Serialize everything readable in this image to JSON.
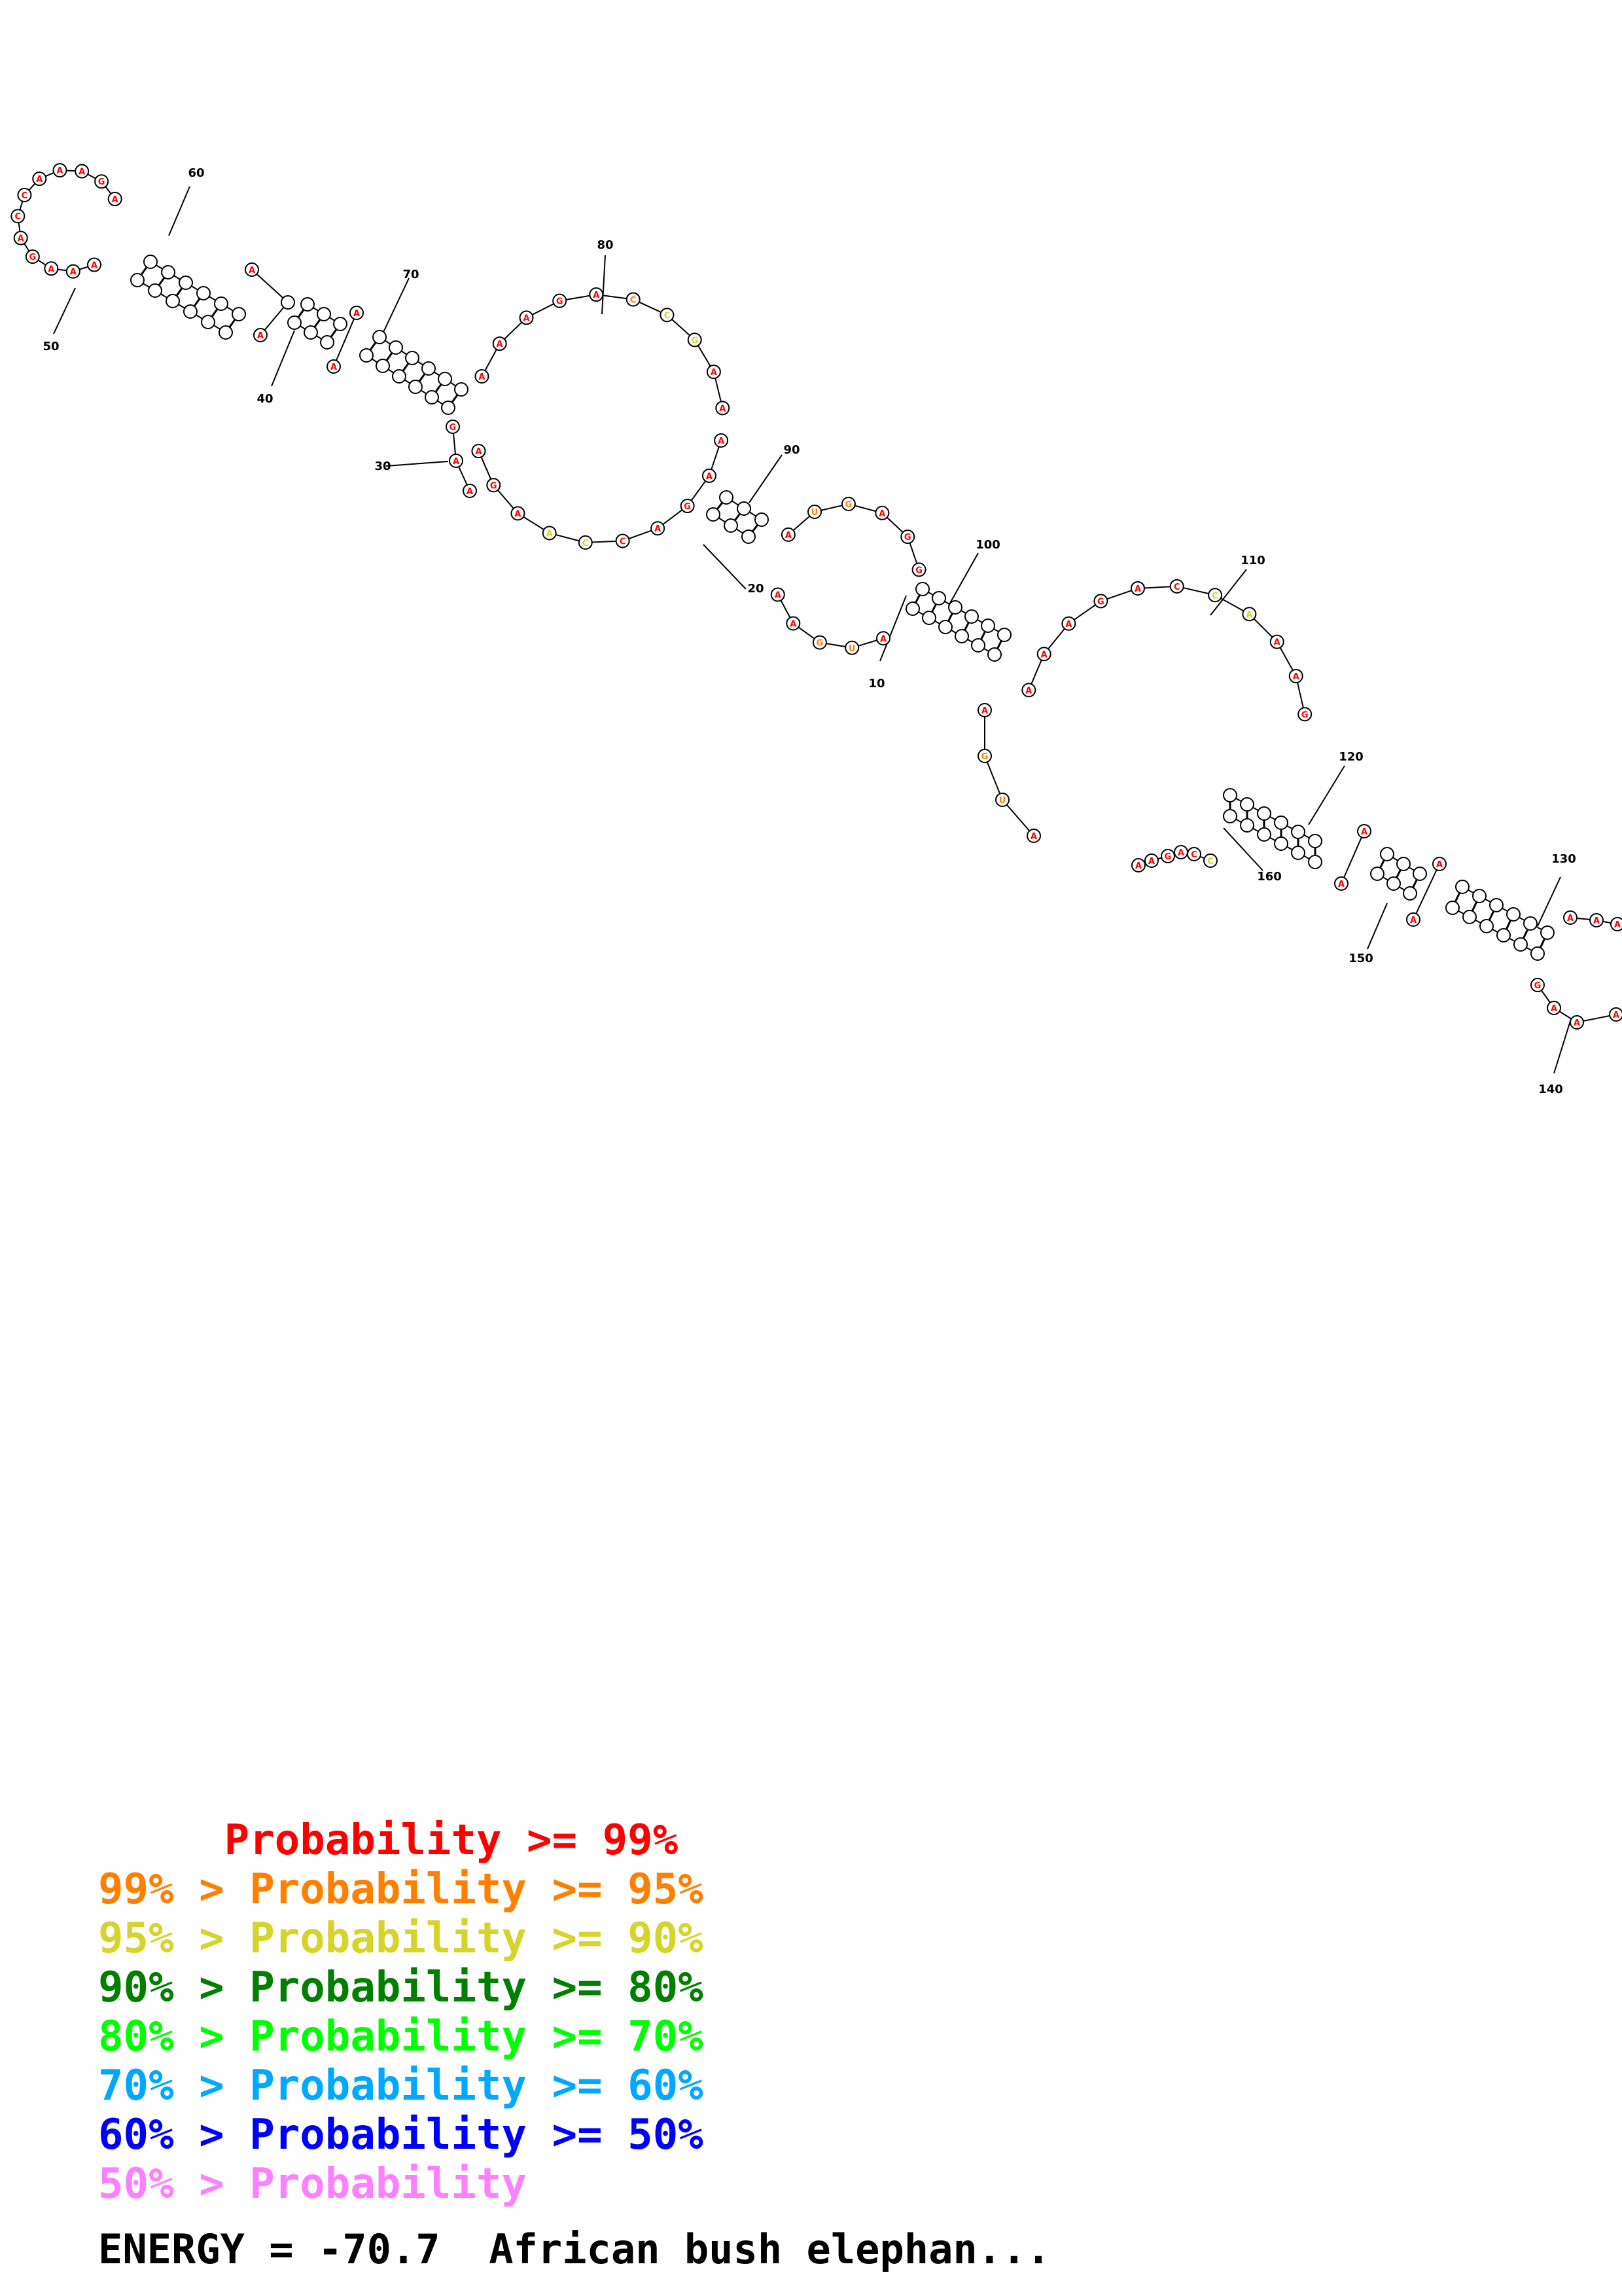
{
  "colors": {
    "p99": "#ff0000",
    "p95": "#ff7f00",
    "p90": "#d4d42a",
    "p80": "#007f00",
    "p70": "#00ff00",
    "p60": "#00a8ff",
    "p50": "#0000ff",
    "plow": "#ff80ff",
    "backbone": "#000000",
    "nucleotide_fill": "#ffffff"
  },
  "legend": [
    {
      "text": "     Probability >= 99%",
      "color_key": "p99"
    },
    {
      "text": "99% > Probability >= 95%",
      "color_key": "p95"
    },
    {
      "text": "95% > Probability >= 90%",
      "color_key": "p90"
    },
    {
      "text": "90% > Probability >= 80%",
      "color_key": "p80"
    },
    {
      "text": "80% > Probability >= 70%",
      "color_key": "p70"
    },
    {
      "text": "70% > Probability >= 60%",
      "color_key": "p60"
    },
    {
      "text": "60% > Probability >= 50%",
      "color_key": "p50"
    },
    {
      "text": "50% > Probability",
      "color_key": "plow"
    }
  ],
  "energy_label": "ENERGY = -70.7  African bush elephan...",
  "position_labels": [
    "10",
    "20",
    "30",
    "40",
    "50",
    "60",
    "70",
    "80",
    "90",
    "100",
    "110",
    "120",
    "130",
    "140",
    "150",
    "160"
  ]
}
